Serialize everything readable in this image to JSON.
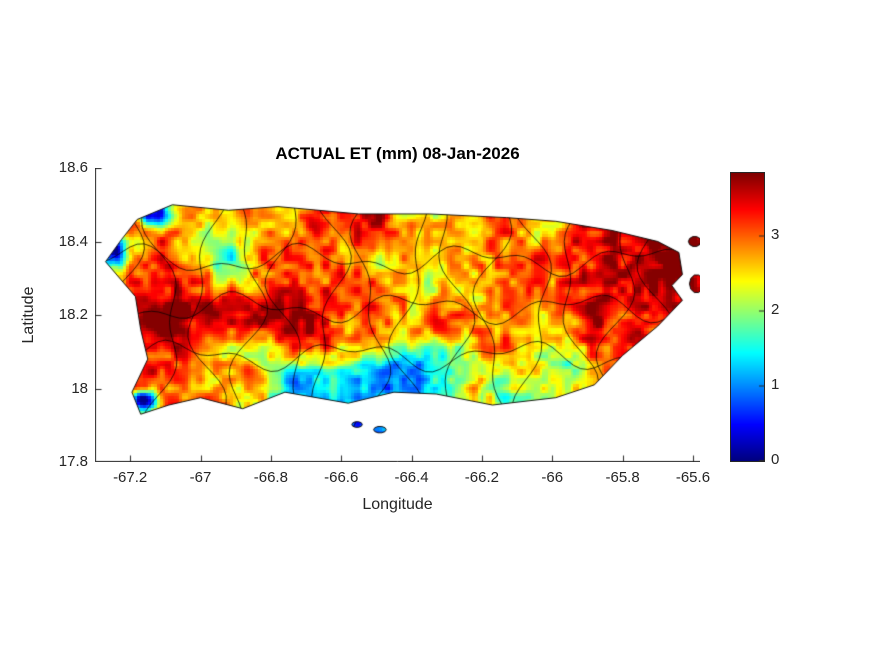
{
  "figure": {
    "title": "ACTUAL ET (mm) 08-Jan-2026",
    "xlabel": "Longitude",
    "ylabel": "Latitude"
  },
  "chart_data": {
    "type": "heatmap",
    "title": "ACTUAL ET (mm) 08-Jan-2026",
    "variable": "Actual evapotranspiration",
    "units": "mm",
    "date": "08-Jan-2026",
    "region": "Puerto Rico with municipality boundary overlay",
    "xlabel": "Longitude",
    "ylabel": "Latitude",
    "xlim": [
      -67.3,
      -65.58
    ],
    "ylim": [
      17.8,
      18.6
    ],
    "x_tick_labels": [
      "-67.2",
      "-67",
      "-66.8",
      "-66.6",
      "-66.4",
      "-66.2",
      "-66",
      "-65.8",
      "-65.6"
    ],
    "x_tick_values": [
      -67.2,
      -67.0,
      -66.8,
      -66.6,
      -66.4,
      -66.2,
      -66.0,
      -65.8,
      -65.6
    ],
    "y_tick_labels": [
      "18.6",
      "18.4",
      "18.2",
      "18",
      "17.8"
    ],
    "y_tick_values": [
      18.6,
      18.4,
      18.2,
      18.0,
      17.8
    ],
    "grid": false,
    "colorbar": {
      "colormap": "jet",
      "min": 0,
      "max": 3.84,
      "tick_labels": [
        "0",
        "1",
        "2",
        "3"
      ],
      "tick_values": [
        0,
        1,
        2,
        3
      ],
      "position": "right"
    },
    "colors": {
      "background": "#ffffff",
      "axis": "#262626",
      "boundary_lines": "#000000"
    },
    "value_range": [
      0,
      3.84
    ],
    "values_note": "Gridded raster; per-pixel values not individually legible at this scale. Interior and eastern Puerto Rico mostly 2.5-3.8 mm (orange/red); scattered 2-2.5 mm (yellow/green); south-central coastal strip 1-2 mm (cyan); isolated low spots below 0.5 mm (dark blue) near the northwest and southwest coasts.",
    "island_outline_lonlat": [
      [
        -67.18,
        18.46
      ],
      [
        -67.08,
        18.5
      ],
      [
        -66.92,
        18.485
      ],
      [
        -66.78,
        18.495
      ],
      [
        -66.55,
        18.475
      ],
      [
        -66.35,
        18.475
      ],
      [
        -66.13,
        18.465
      ],
      [
        -65.99,
        18.455
      ],
      [
        -65.83,
        18.43
      ],
      [
        -65.7,
        18.4
      ],
      [
        -65.64,
        18.37
      ],
      [
        -65.63,
        18.31
      ],
      [
        -65.66,
        18.28
      ],
      [
        -65.63,
        18.24
      ],
      [
        -65.7,
        18.17
      ],
      [
        -65.8,
        18.09
      ],
      [
        -65.88,
        18.01
      ],
      [
        -65.99,
        17.975
      ],
      [
        -66.17,
        17.955
      ],
      [
        -66.33,
        17.985
      ],
      [
        -66.45,
        17.99
      ],
      [
        -66.58,
        17.96
      ],
      [
        -66.76,
        17.99
      ],
      [
        -66.88,
        17.945
      ],
      [
        -67.0,
        17.975
      ],
      [
        -67.09,
        17.955
      ],
      [
        -67.17,
        17.93
      ],
      [
        -67.195,
        17.99
      ],
      [
        -67.15,
        18.08
      ],
      [
        -67.17,
        18.16
      ],
      [
        -67.185,
        18.25
      ],
      [
        -67.27,
        18.345
      ],
      [
        -67.225,
        18.405
      ]
    ],
    "islets": [
      {
        "lon": -66.555,
        "lat": 17.902,
        "rx": 0.015,
        "ry": 0.008
      },
      {
        "lon": -66.49,
        "lat": 17.888,
        "rx": 0.018,
        "ry": 0.009
      },
      {
        "lon": -65.595,
        "lat": 18.4,
        "rx": 0.018,
        "ry": 0.014
      },
      {
        "lon": -65.59,
        "lat": 18.285,
        "rx": 0.02,
        "ry": 0.025
      }
    ]
  }
}
